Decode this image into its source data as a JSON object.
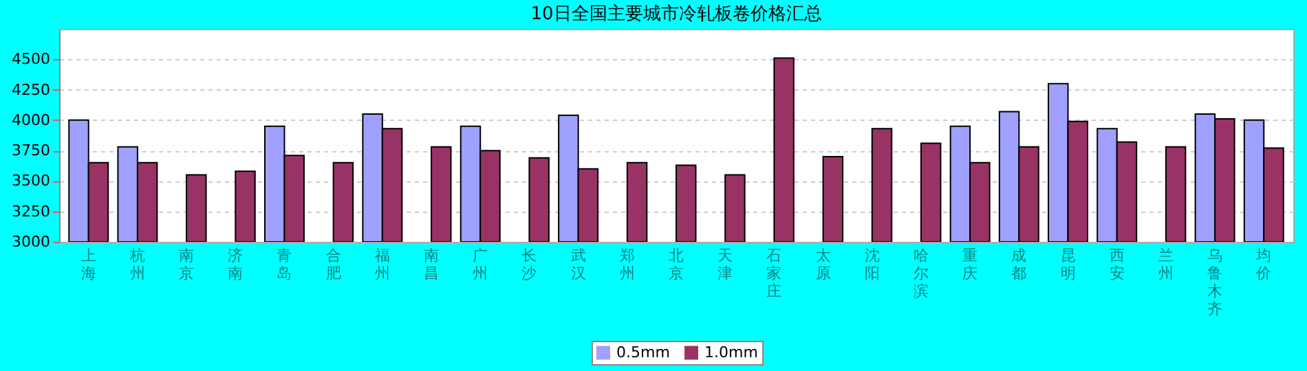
{
  "chart_data": {
    "type": "bar",
    "title": "10日全国主要城市冷轧板卷价格汇总",
    "categories": [
      "上海",
      "杭州",
      "南京",
      "济南",
      "青岛",
      "合肥",
      "福州",
      "南昌",
      "广州",
      "长沙",
      "武汉",
      "郑州",
      "北京",
      "天津",
      "石家庄",
      "太原",
      "沈阳",
      "哈尔滨",
      "重庆",
      "成都",
      "昆明",
      "西安",
      "兰州",
      "乌鲁木齐",
      "均价"
    ],
    "series": [
      {
        "name": "0.5mm",
        "color": "#a0a0ff",
        "values": [
          4000,
          3780,
          null,
          null,
          3950,
          null,
          4050,
          null,
          3950,
          null,
          4040,
          null,
          null,
          null,
          null,
          null,
          null,
          null,
          3950,
          4070,
          4300,
          3930,
          null,
          4050,
          4000
        ]
      },
      {
        "name": "1.0mm",
        "color": "#993366",
        "values": [
          3650,
          3650,
          3550,
          3580,
          3710,
          3650,
          3930,
          3780,
          3750,
          3690,
          3600,
          3650,
          3630,
          3550,
          4510,
          3700,
          3930,
          3810,
          3650,
          3780,
          3990,
          3820,
          3780,
          4010,
          3770
        ]
      }
    ],
    "ylim": [
      3000,
      4750
    ],
    "yticks": [
      3000,
      3250,
      3500,
      3750,
      4000,
      4250,
      4500
    ],
    "grid": "y",
    "legend": "bottom"
  }
}
